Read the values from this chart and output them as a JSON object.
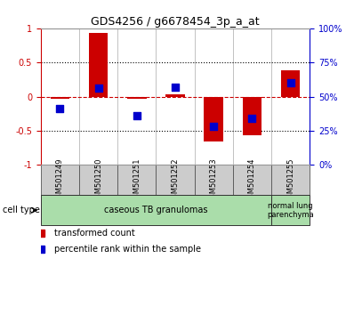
{
  "title": "GDS4256 / g6678454_3p_a_at",
  "samples": [
    "GSM501249",
    "GSM501250",
    "GSM501251",
    "GSM501252",
    "GSM501253",
    "GSM501254",
    "GSM501255"
  ],
  "red_values": [
    -0.03,
    0.93,
    -0.03,
    0.04,
    -0.65,
    -0.57,
    0.38
  ],
  "blue_values": [
    -0.18,
    0.13,
    -0.28,
    0.14,
    -0.43,
    -0.32,
    0.2
  ],
  "ylim": [
    -1,
    1
  ],
  "yticks": [
    -1,
    -0.5,
    0,
    0.5,
    1
  ],
  "ytick_labels": [
    "-1",
    "-0.5",
    "0",
    "0.5",
    "1"
  ],
  "right_ytick_labels_pct": [
    "0%",
    "25%",
    "50%",
    "75%",
    "100%"
  ],
  "right_ytick_positions": [
    -1.0,
    -0.5,
    0.0,
    0.5,
    1.0
  ],
  "red_color": "#CC0000",
  "blue_color": "#0000CC",
  "bar_width": 0.5,
  "group1_label": "caseous TB granulomas",
  "group1_samples": [
    0,
    1,
    2,
    3,
    4,
    5
  ],
  "group2_label": "normal lung\nparenchyma",
  "group2_samples": [
    6
  ],
  "group1_color": "#aaddaa",
  "group2_color": "#aaddaa",
  "cell_type_label": "cell type",
  "legend_red": "transformed count",
  "legend_blue": "percentile rank within the sample",
  "tick_bg_color": "#CCCCCC"
}
